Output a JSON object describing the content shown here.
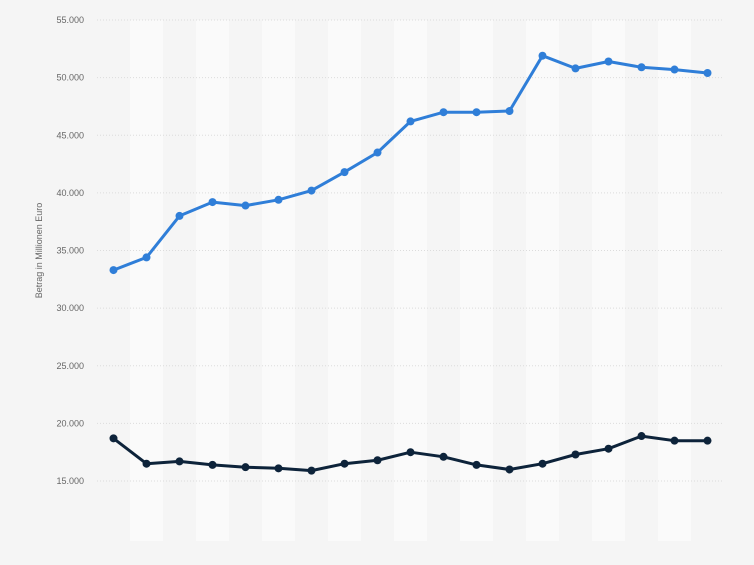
{
  "chart_data": {
    "type": "line",
    "title": "",
    "xlabel": "",
    "ylabel": "Betrag in Millionen Euro",
    "ylim": [
      15000,
      55000
    ],
    "y_ticks": [
      15000,
      20000,
      25000,
      30000,
      35000,
      40000,
      45000,
      50000,
      55000
    ],
    "y_tick_labels": [
      "15.000",
      "20.000",
      "25.000",
      "30.000",
      "35.000",
      "40.000",
      "45.000",
      "50.000",
      "55.000"
    ],
    "grid": true,
    "legend": "none",
    "point_count": 19,
    "series": [
      {
        "color": "#2f7ed8",
        "values": [
          33300,
          34400,
          38000,
          39200,
          38900,
          39400,
          40200,
          41800,
          43500,
          46200,
          47000,
          47000,
          47100,
          51900,
          50800,
          51400,
          50900,
          50700,
          50400
        ]
      },
      {
        "color": "#0d233a",
        "values": [
          18700,
          16500,
          16700,
          16400,
          16200,
          16100,
          15900,
          16500,
          16800,
          17500,
          17100,
          16400,
          16000,
          16500,
          17300,
          17800,
          18900,
          18500,
          18500
        ]
      }
    ]
  }
}
